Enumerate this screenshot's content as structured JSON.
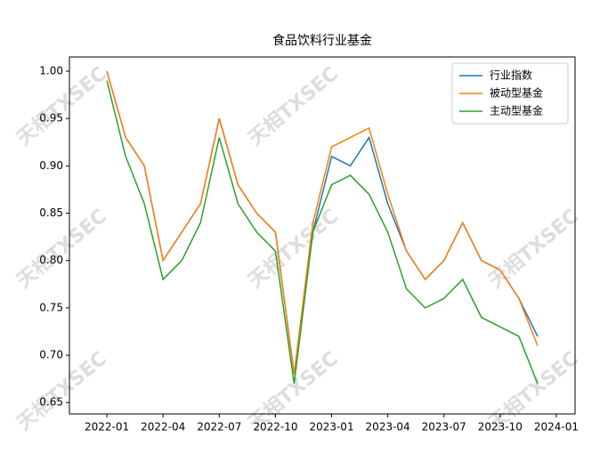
{
  "chart_data": {
    "type": "line",
    "title": "食品饮料行业基金",
    "watermark": "天相TXSEC",
    "x": [
      "2022-01",
      "2022-02",
      "2022-03",
      "2022-04",
      "2022-05",
      "2022-06",
      "2022-07",
      "2022-08",
      "2022-09",
      "2022-10",
      "2022-11",
      "2022-12",
      "2023-01",
      "2023-02",
      "2023-03",
      "2023-04",
      "2023-05",
      "2023-06",
      "2023-07",
      "2023-08",
      "2023-09",
      "2023-10",
      "2023-11",
      "2023-12"
    ],
    "series": [
      {
        "name": "行业指数",
        "color": "#1f77b4",
        "values": [
          1.0,
          0.93,
          0.9,
          0.8,
          0.83,
          0.86,
          0.95,
          0.88,
          0.85,
          0.83,
          0.68,
          0.83,
          0.91,
          0.9,
          0.93,
          0.86,
          0.81,
          0.78,
          0.8,
          0.84,
          0.8,
          0.79,
          0.76,
          0.72
        ]
      },
      {
        "name": "被动型基金",
        "color": "#ff7f0e",
        "values": [
          1.0,
          0.93,
          0.9,
          0.8,
          0.83,
          0.86,
          0.95,
          0.88,
          0.85,
          0.83,
          0.68,
          0.84,
          0.92,
          0.93,
          0.94,
          0.87,
          0.81,
          0.78,
          0.8,
          0.84,
          0.8,
          0.79,
          0.76,
          0.71
        ]
      },
      {
        "name": "主动型基金",
        "color": "#2ca02c",
        "values": [
          0.99,
          0.91,
          0.86,
          0.78,
          0.8,
          0.84,
          0.93,
          0.86,
          0.83,
          0.81,
          0.67,
          0.83,
          0.88,
          0.89,
          0.87,
          0.83,
          0.77,
          0.75,
          0.76,
          0.78,
          0.74,
          0.73,
          0.72,
          0.67
        ]
      }
    ],
    "xlim": [
      "2021-11",
      "2024-02"
    ],
    "xticks": [
      "2022-01",
      "2022-04",
      "2022-07",
      "2022-10",
      "2023-01",
      "2023-04",
      "2023-07",
      "2023-10",
      "2024-01"
    ],
    "ylim": [
      0.638,
      1.015
    ],
    "yticks": [
      {
        "value": 0.65,
        "label": "0.65"
      },
      {
        "value": 0.7,
        "label": "0.70"
      },
      {
        "value": 0.75,
        "label": "0.75"
      },
      {
        "value": 0.8,
        "label": "0.80"
      },
      {
        "value": 0.85,
        "label": "0.85"
      },
      {
        "value": 0.9,
        "label": "0.90"
      },
      {
        "value": 0.95,
        "label": "0.95"
      },
      {
        "value": 1.0,
        "label": "1.00"
      }
    ],
    "legend": "upper right"
  }
}
